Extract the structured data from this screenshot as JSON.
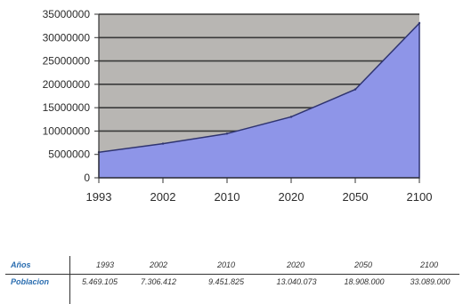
{
  "chart_data": {
    "type": "area",
    "categories": [
      "1993",
      "2002",
      "2010",
      "2020",
      "2050",
      "2100"
    ],
    "values": [
      5469105,
      7306412,
      9451825,
      13040073,
      18908000,
      33089000
    ],
    "y_ticks": [
      "35000000",
      "30000000",
      "25000000",
      "20000000",
      "15000000",
      "10000000",
      "5000000",
      "0"
    ],
    "ylim": [
      0,
      35000000
    ],
    "grid": true,
    "colors": {
      "area": "#8e95e8",
      "plot_bg": "#b8b6b3",
      "grid": "#3a3a3a"
    }
  },
  "table": {
    "row1_label": "Años",
    "row2_label": "Poblacion",
    "years": [
      "1993",
      "2002",
      "2010",
      "2020",
      "2050",
      "2100"
    ],
    "values": [
      "5.469.105",
      "7.306.412",
      "9.451.825",
      "13.040.073",
      "18.908.000",
      "33.089.000"
    ]
  }
}
